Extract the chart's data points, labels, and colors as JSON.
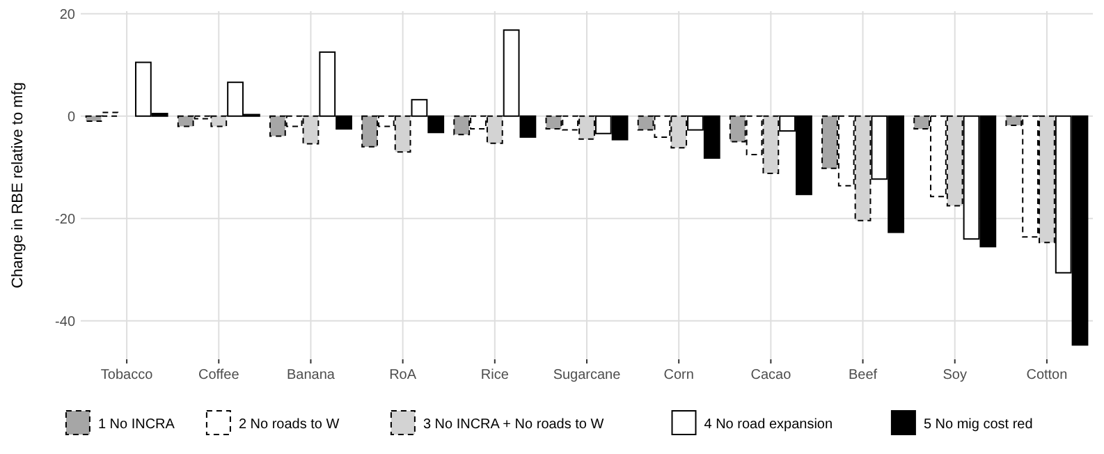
{
  "chart_data": {
    "type": "bar",
    "ylabel": "Change in RBE relative to mfg",
    "categories": [
      "Tobacco",
      "Coffee",
      "Banana",
      "RoA",
      "Rice",
      "Sugarcane",
      "Corn",
      "Cacao",
      "Beef",
      "Soy",
      "Cotton"
    ],
    "series": [
      {
        "name": "1 No INCRA",
        "color": "#a6a6a6",
        "line_style": "dashed",
        "values": [
          -1,
          -2,
          -3.9,
          -6,
          -3.6,
          -2.5,
          -2.7,
          -5,
          -10.2,
          -2.5,
          -1.8
        ]
      },
      {
        "name": "2 No roads to W",
        "color": "#ffffff",
        "line_style": "dashed",
        "values": [
          0.7,
          -0.5,
          -2,
          -2,
          -2.5,
          -2.7,
          -4.1,
          -7.5,
          -13.6,
          -15.7,
          -23.6
        ]
      },
      {
        "name": "3 No INCRA + No roads to W",
        "color": "#d3d3d3",
        "line_style": "dashed",
        "values": [
          0,
          -2,
          -5.4,
          -7,
          -5.3,
          -4.5,
          -6.2,
          -11.2,
          -20.4,
          -17.5,
          -24.7
        ]
      },
      {
        "name": "4 No road expansion",
        "color": "#ffffff",
        "line_style": "solid",
        "values": [
          10.5,
          6.6,
          12.5,
          3.2,
          16.8,
          -3.4,
          -2.7,
          -2.9,
          -12.3,
          -24,
          -30.6
        ]
      },
      {
        "name": "5 No mig cost red",
        "color": "#000000",
        "line_style": "solid",
        "values": [
          0.5,
          0.3,
          -2.5,
          -3.2,
          -4.1,
          -4.6,
          -8.2,
          -15.3,
          -22.7,
          -25.5,
          -44.7
        ]
      }
    ],
    "ylim": [
      -47.5,
      20.5
    ],
    "yticks": [
      -40,
      -20,
      0,
      20
    ],
    "grid": true,
    "legend": "bottom"
  }
}
